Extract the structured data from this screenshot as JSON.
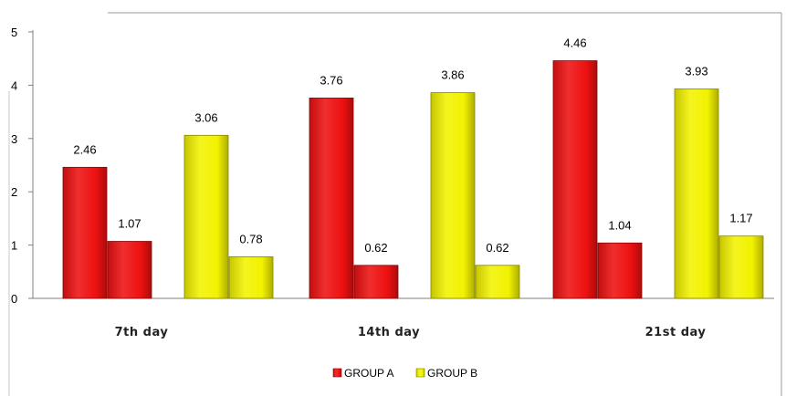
{
  "chart_data": {
    "type": "bar",
    "categories": [
      "7th day",
      "14th day",
      "21st day"
    ],
    "series": [
      {
        "name": "GROUP A",
        "color": "#ee1111",
        "values": [
          [
            2.46,
            1.07
          ],
          [
            3.76,
            0.62
          ],
          [
            4.46,
            1.04
          ]
        ]
      },
      {
        "name": "GROUP B",
        "color": "#f2f200",
        "values": [
          [
            3.06,
            0.78
          ],
          [
            3.86,
            0.62
          ],
          [
            3.93,
            1.17
          ]
        ]
      }
    ],
    "data_labels": [
      [
        "2.46",
        "1.07",
        "3.06",
        "0.78"
      ],
      [
        "3.76",
        "0.62",
        "3.86",
        "0.62"
      ],
      [
        "4.46",
        "1.04",
        "3.93",
        "1.17"
      ]
    ],
    "yticks": [
      "0",
      "1",
      "2",
      "3",
      "4",
      "5"
    ],
    "ylim": [
      0,
      5
    ],
    "legend_position": "bottom",
    "grid": false
  }
}
